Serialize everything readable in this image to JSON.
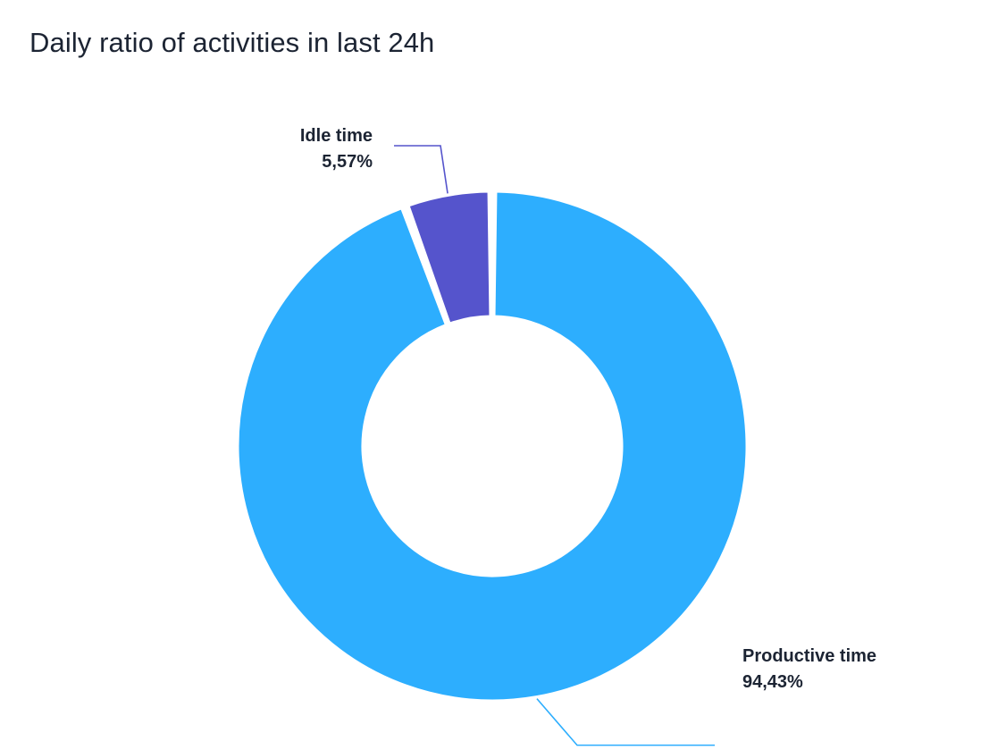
{
  "chart_data": {
    "type": "pie",
    "variant": "donut",
    "title": "Daily ratio of activities in last 24h",
    "slices": [
      {
        "label": "Productive time",
        "value": 94.43,
        "value_label": "94,43%",
        "color": "#2daefe"
      },
      {
        "label": "Idle time",
        "value": 5.57,
        "value_label": "5,57%",
        "color": "#5554cc"
      }
    ],
    "legend": "none",
    "labels": "outside with leader lines"
  }
}
